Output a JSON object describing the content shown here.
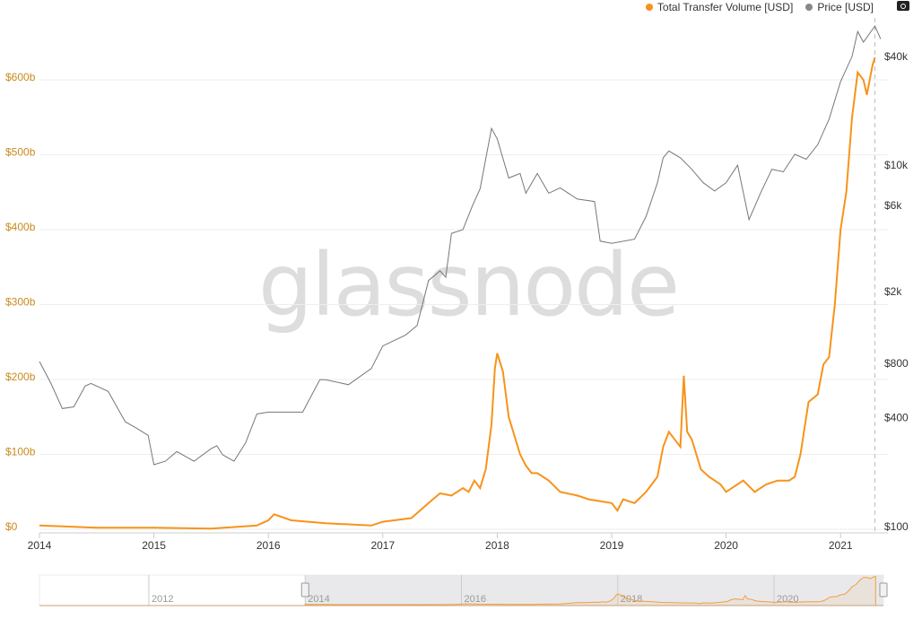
{
  "legend": {
    "volume": "Total Transfer Volume [USD]",
    "price": "Price [USD]"
  },
  "watermark": "glassnode",
  "colors": {
    "volume": "#f7931a",
    "price": "#777777",
    "left_axis": "#c98a1e"
  },
  "chart_data": {
    "type": "line",
    "xlim": [
      2014.0,
      2021.4
    ],
    "x_ticks": [
      "2014",
      "2015",
      "2016",
      "2017",
      "2018",
      "2019",
      "2020",
      "2021"
    ],
    "left_axis": {
      "label": "Total Transfer Volume [USD]",
      "ticks": [
        "$0",
        "$100b",
        "$200b",
        "$300b",
        "$400b",
        "$500b",
        "$600b"
      ],
      "tick_values": [
        0,
        100,
        200,
        300,
        400,
        500,
        600
      ],
      "unit": "billion USD",
      "ylim": [
        0,
        700
      ]
    },
    "right_axis": {
      "label": "Price [USD]",
      "scale": "log",
      "ticks": [
        "$100",
        "$400",
        "$800",
        "$2k",
        "$6k",
        "$10k",
        "$40k"
      ],
      "tick_values": [
        100,
        400,
        800,
        2000,
        6000,
        10000,
        40000
      ]
    },
    "series": [
      {
        "name": "Total Transfer Volume [USD]",
        "axis": "left",
        "points": [
          [
            2014.0,
            5
          ],
          [
            2014.5,
            2
          ],
          [
            2015.0,
            2
          ],
          [
            2015.5,
            1
          ],
          [
            2015.9,
            5
          ],
          [
            2016.0,
            12
          ],
          [
            2016.05,
            20
          ],
          [
            2016.2,
            12
          ],
          [
            2016.5,
            8
          ],
          [
            2016.9,
            5
          ],
          [
            2017.0,
            10
          ],
          [
            2017.25,
            15
          ],
          [
            2017.4,
            35
          ],
          [
            2017.5,
            48
          ],
          [
            2017.6,
            45
          ],
          [
            2017.7,
            55
          ],
          [
            2017.75,
            50
          ],
          [
            2017.8,
            65
          ],
          [
            2017.85,
            55
          ],
          [
            2017.9,
            80
          ],
          [
            2017.95,
            140
          ],
          [
            2017.98,
            215
          ],
          [
            2018.0,
            235
          ],
          [
            2018.05,
            210
          ],
          [
            2018.1,
            150
          ],
          [
            2018.2,
            100
          ],
          [
            2018.25,
            85
          ],
          [
            2018.3,
            75
          ],
          [
            2018.35,
            75
          ],
          [
            2018.45,
            65
          ],
          [
            2018.55,
            50
          ],
          [
            2018.7,
            45
          ],
          [
            2018.8,
            40
          ],
          [
            2019.0,
            35
          ],
          [
            2019.05,
            25
          ],
          [
            2019.1,
            40
          ],
          [
            2019.2,
            35
          ],
          [
            2019.3,
            50
          ],
          [
            2019.4,
            70
          ],
          [
            2019.45,
            110
          ],
          [
            2019.5,
            130
          ],
          [
            2019.55,
            120
          ],
          [
            2019.6,
            110
          ],
          [
            2019.63,
            205
          ],
          [
            2019.66,
            130
          ],
          [
            2019.7,
            120
          ],
          [
            2019.78,
            80
          ],
          [
            2019.85,
            70
          ],
          [
            2019.95,
            60
          ],
          [
            2020.0,
            50
          ],
          [
            2020.05,
            55
          ],
          [
            2020.15,
            65
          ],
          [
            2020.25,
            50
          ],
          [
            2020.35,
            60
          ],
          [
            2020.45,
            65
          ],
          [
            2020.55,
            65
          ],
          [
            2020.6,
            70
          ],
          [
            2020.65,
            100
          ],
          [
            2020.72,
            170
          ],
          [
            2020.8,
            180
          ],
          [
            2020.85,
            220
          ],
          [
            2020.9,
            230
          ],
          [
            2020.95,
            300
          ],
          [
            2021.0,
            400
          ],
          [
            2021.05,
            450
          ],
          [
            2021.1,
            550
          ],
          [
            2021.15,
            610
          ],
          [
            2021.2,
            600
          ],
          [
            2021.23,
            580
          ],
          [
            2021.28,
            620
          ],
          [
            2021.3,
            630
          ]
        ]
      },
      {
        "name": "Price [USD]",
        "axis": "right",
        "points": [
          [
            2014.0,
            820
          ],
          [
            2014.1,
            620
          ],
          [
            2014.2,
            450
          ],
          [
            2014.3,
            460
          ],
          [
            2014.4,
            600
          ],
          [
            2014.45,
            620
          ],
          [
            2014.6,
            560
          ],
          [
            2014.75,
            380
          ],
          [
            2014.85,
            350
          ],
          [
            2014.95,
            320
          ],
          [
            2015.0,
            220
          ],
          [
            2015.1,
            230
          ],
          [
            2015.2,
            260
          ],
          [
            2015.35,
            230
          ],
          [
            2015.5,
            270
          ],
          [
            2015.55,
            280
          ],
          [
            2015.6,
            250
          ],
          [
            2015.7,
            230
          ],
          [
            2015.8,
            290
          ],
          [
            2015.9,
            420
          ],
          [
            2016.0,
            430
          ],
          [
            2016.3,
            430
          ],
          [
            2016.45,
            650
          ],
          [
            2016.5,
            650
          ],
          [
            2016.7,
            610
          ],
          [
            2016.9,
            750
          ],
          [
            2017.0,
            1000
          ],
          [
            2017.2,
            1150
          ],
          [
            2017.3,
            1300
          ],
          [
            2017.4,
            2300
          ],
          [
            2017.5,
            2600
          ],
          [
            2017.55,
            2400
          ],
          [
            2017.6,
            4200
          ],
          [
            2017.7,
            4400
          ],
          [
            2017.78,
            5900
          ],
          [
            2017.85,
            7400
          ],
          [
            2017.95,
            16000
          ],
          [
            2018.0,
            14000
          ],
          [
            2018.1,
            8500
          ],
          [
            2018.2,
            9000
          ],
          [
            2018.25,
            7000
          ],
          [
            2018.35,
            9000
          ],
          [
            2018.45,
            7000
          ],
          [
            2018.55,
            7500
          ],
          [
            2018.7,
            6500
          ],
          [
            2018.85,
            6300
          ],
          [
            2018.9,
            3800
          ],
          [
            2019.0,
            3700
          ],
          [
            2019.2,
            3900
          ],
          [
            2019.3,
            5200
          ],
          [
            2019.4,
            8000
          ],
          [
            2019.45,
            11000
          ],
          [
            2019.5,
            12000
          ],
          [
            2019.6,
            11000
          ],
          [
            2019.7,
            9500
          ],
          [
            2019.8,
            8000
          ],
          [
            2019.9,
            7200
          ],
          [
            2020.0,
            8000
          ],
          [
            2020.1,
            10000
          ],
          [
            2020.2,
            5000
          ],
          [
            2020.3,
            7000
          ],
          [
            2020.4,
            9500
          ],
          [
            2020.5,
            9200
          ],
          [
            2020.6,
            11500
          ],
          [
            2020.7,
            10800
          ],
          [
            2020.8,
            13000
          ],
          [
            2020.9,
            18000
          ],
          [
            2021.0,
            29000
          ],
          [
            2021.1,
            40000
          ],
          [
            2021.15,
            55000
          ],
          [
            2021.2,
            48000
          ],
          [
            2021.3,
            59000
          ],
          [
            2021.35,
            50000
          ]
        ]
      }
    ],
    "crosshair_x": 2021.3,
    "navigator": {
      "ticks": [
        "2012",
        "2014",
        "2016",
        "2018",
        "2020"
      ],
      "selected_range": [
        2014.0,
        2021.4
      ]
    }
  }
}
